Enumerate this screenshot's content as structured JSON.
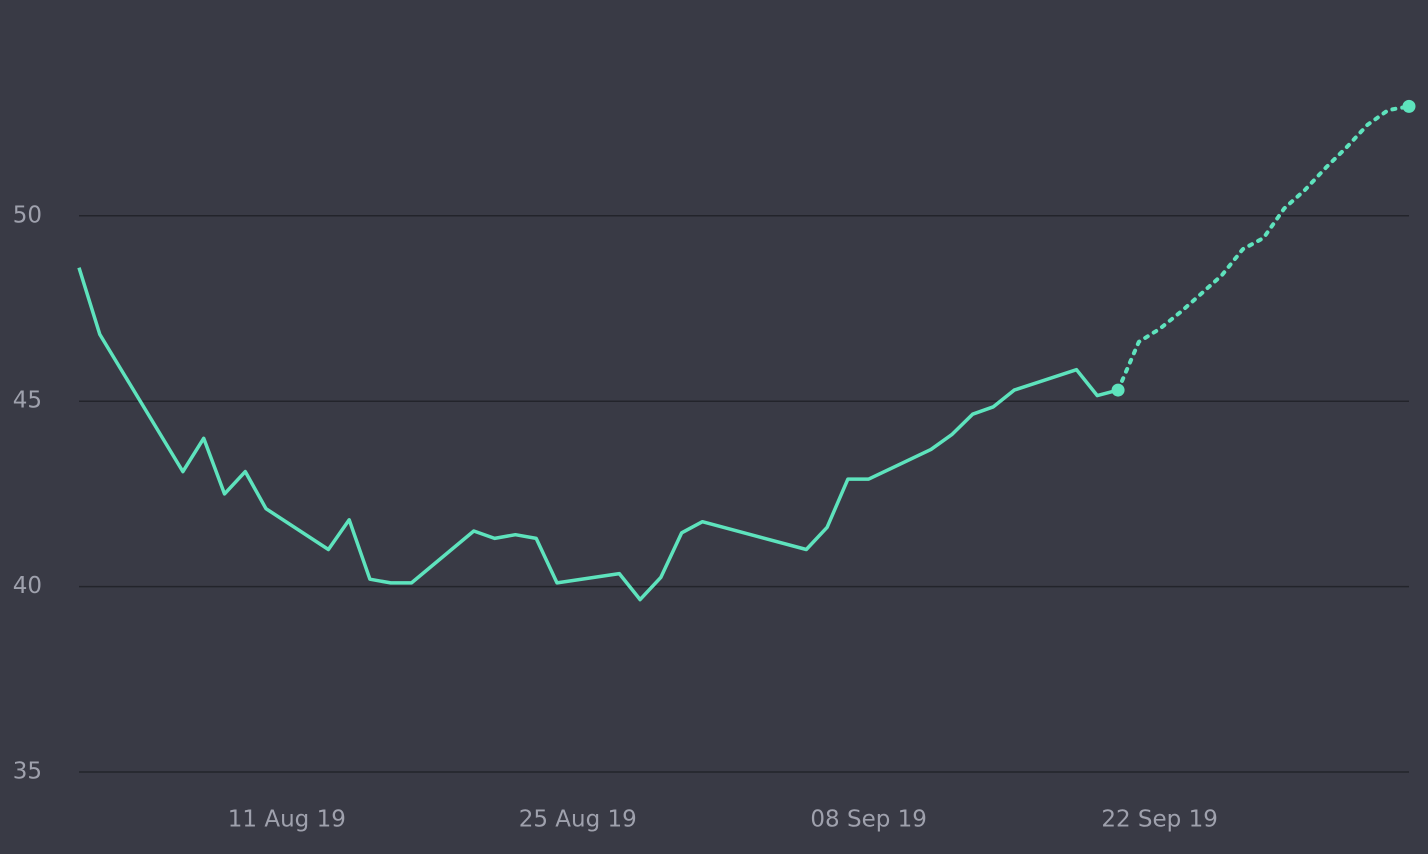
{
  "chart_data": {
    "type": "line",
    "ylim": [
      35,
      53.5
    ],
    "yticks": [
      35,
      40,
      45,
      50
    ],
    "ytick_labels": [
      "35",
      "40",
      "45",
      "50"
    ],
    "xticks": [
      {
        "label": "11 Aug 19",
        "x": "2019-08-11"
      },
      {
        "label": "25 Aug 19",
        "x": "2019-08-25"
      },
      {
        "label": "08 Sep 19",
        "x": "2019-09-08"
      },
      {
        "label": "22 Sep 19",
        "x": "2019-09-22"
      }
    ],
    "xlim": [
      "2019-08-01",
      "2019-10-04"
    ],
    "grid": true,
    "colors": {
      "background": "#393a45",
      "line": "#5ee3bd",
      "grid": "#23242b",
      "tick_text": "#9fa1ad"
    },
    "series": [
      {
        "style": "solid",
        "points": [
          [
            "2019-08-01",
            48.6
          ],
          [
            "2019-08-02",
            46.8
          ],
          [
            "2019-08-06",
            43.1
          ],
          [
            "2019-08-07",
            44.0
          ],
          [
            "2019-08-08",
            42.5
          ],
          [
            "2019-08-09",
            43.1
          ],
          [
            "2019-08-10",
            42.1
          ],
          [
            "2019-08-13",
            41.0
          ],
          [
            "2019-08-14",
            41.8
          ],
          [
            "2019-08-15",
            40.2
          ],
          [
            "2019-08-16",
            40.1
          ],
          [
            "2019-08-17",
            40.1
          ],
          [
            "2019-08-20",
            41.5
          ],
          [
            "2019-08-21",
            41.3
          ],
          [
            "2019-08-22",
            41.4
          ],
          [
            "2019-08-23",
            41.3
          ],
          [
            "2019-08-24",
            40.1
          ],
          [
            "2019-08-27",
            40.35
          ],
          [
            "2019-08-28",
            39.65
          ],
          [
            "2019-08-29",
            40.25
          ],
          [
            "2019-08-30",
            41.45
          ],
          [
            "2019-08-31",
            41.75
          ],
          [
            "2019-09-05",
            41.0
          ],
          [
            "2019-09-06",
            41.6
          ],
          [
            "2019-09-07",
            42.9
          ],
          [
            "2019-09-08",
            42.9
          ],
          [
            "2019-09-11",
            43.7
          ],
          [
            "2019-09-12",
            44.1
          ],
          [
            "2019-09-13",
            44.65
          ],
          [
            "2019-09-14",
            44.85
          ],
          [
            "2019-09-15",
            45.3
          ],
          [
            "2019-09-18",
            45.85
          ],
          [
            "2019-09-19",
            45.15
          ],
          [
            "2019-09-20",
            45.3
          ]
        ]
      },
      {
        "style": "dotted",
        "points": [
          [
            "2019-09-20",
            45.3
          ],
          [
            "2019-09-21",
            46.6
          ],
          [
            "2019-09-22",
            46.95
          ],
          [
            "2019-09-23",
            47.4
          ],
          [
            "2019-09-24",
            47.9
          ],
          [
            "2019-09-25",
            48.4
          ],
          [
            "2019-09-26",
            49.1
          ],
          [
            "2019-09-27",
            49.4
          ],
          [
            "2019-09-28",
            50.2
          ],
          [
            "2019-09-29",
            50.7
          ],
          [
            "2019-09-30",
            51.3
          ],
          [
            "2019-10-01",
            51.85
          ],
          [
            "2019-10-02",
            52.45
          ],
          [
            "2019-10-03",
            52.85
          ],
          [
            "2019-10-04",
            52.95
          ]
        ]
      }
    ],
    "markers": [
      [
        "2019-09-20",
        45.3
      ],
      [
        "2019-10-04",
        52.95
      ]
    ]
  }
}
